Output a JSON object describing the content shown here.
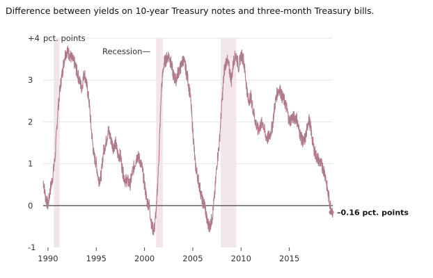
{
  "title": "Difference between yields on 10-year Treasury notes and three-month Treasury bills.",
  "colors": {
    "line": "#b07a8c",
    "recession": "#f3e6e9",
    "grid": "#e6e6e6",
    "zero": "#555555",
    "axis": "#444444"
  },
  "chart_data": {
    "type": "line",
    "title": "Difference between yields on 10-year Treasury notes and three-month Treasury bills.",
    "xlabel": "",
    "ylabel": "",
    "unit_label": "pct. points",
    "xlim": [
      1989.5,
      2019.5
    ],
    "ylim": [
      -1,
      4
    ],
    "x_ticks": [
      {
        "value": 1990,
        "label": "1990"
      },
      {
        "value": 1995,
        "label": "1995"
      },
      {
        "value": 2000,
        "label": "2000"
      },
      {
        "value": 2005,
        "label": "2005"
      },
      {
        "value": 2010,
        "label": "2010"
      },
      {
        "value": 2015,
        "label": "2015"
      }
    ],
    "y_ticks": [
      {
        "value": 4,
        "label": "+4"
      },
      {
        "value": 3,
        "label": "3"
      },
      {
        "value": 2,
        "label": "2"
      },
      {
        "value": 1,
        "label": "1"
      },
      {
        "value": 0,
        "label": "0"
      },
      {
        "value": -1,
        "label": "-1"
      }
    ],
    "recessions": [
      {
        "start": 1990.6,
        "end": 1991.2
      },
      {
        "start": 2001.2,
        "end": 2001.9
      },
      {
        "start": 2007.9,
        "end": 2009.5
      }
    ],
    "recession_label": "Recession—",
    "grid": true,
    "series": [
      {
        "x": [
          1989.5,
          1989.75,
          1990.0,
          1990.25,
          1990.5,
          1990.75,
          1991.0,
          1991.25,
          1991.5,
          1991.75,
          1992.0,
          1992.25,
          1992.5,
          1992.75,
          1993.0,
          1993.25,
          1993.5,
          1993.75,
          1994.0,
          1994.25,
          1994.5,
          1994.75,
          1995.0,
          1995.25,
          1995.5,
          1995.75,
          1996.0,
          1996.25,
          1996.5,
          1996.75,
          1997.0,
          1997.25,
          1997.5,
          1997.75,
          1998.0,
          1998.25,
          1998.5,
          1998.75,
          1999.0,
          1999.25,
          1999.5,
          1999.75,
          2000.0,
          2000.25,
          2000.5,
          2000.75,
          2001.0,
          2001.25,
          2001.5,
          2001.75,
          2002.0,
          2002.25,
          2002.5,
          2002.75,
          2003.0,
          2003.25,
          2003.5,
          2003.75,
          2004.0,
          2004.25,
          2004.5,
          2004.75,
          2005.0,
          2005.25,
          2005.5,
          2005.75,
          2006.0,
          2006.25,
          2006.5,
          2006.75,
          2007.0,
          2007.25,
          2007.5,
          2007.75,
          2008.0,
          2008.25,
          2008.5,
          2008.75,
          2009.0,
          2009.25,
          2009.5,
          2009.75,
          2010.0,
          2010.25,
          2010.5,
          2010.75,
          2011.0,
          2011.25,
          2011.5,
          2011.75,
          2012.0,
          2012.25,
          2012.5,
          2012.75,
          2013.0,
          2013.25,
          2013.5,
          2013.75,
          2014.0,
          2014.25,
          2014.5,
          2014.75,
          2015.0,
          2015.25,
          2015.5,
          2015.75,
          2016.0,
          2016.25,
          2016.5,
          2016.75,
          2017.0,
          2017.25,
          2017.5,
          2017.75,
          2018.0,
          2018.25,
          2018.5,
          2018.75,
          2019.0,
          2019.25,
          2019.5
        ],
        "y": [
          0.6,
          0.2,
          0.0,
          0.4,
          0.7,
          1.2,
          2.2,
          2.8,
          3.2,
          3.6,
          3.7,
          3.6,
          3.5,
          3.4,
          3.2,
          3.0,
          2.8,
          3.2,
          2.9,
          2.5,
          1.8,
          1.2,
          1.0,
          0.6,
          0.7,
          1.3,
          1.5,
          1.8,
          1.6,
          1.4,
          1.5,
          1.2,
          1.2,
          0.8,
          0.6,
          0.6,
          0.5,
          0.8,
          1.0,
          1.2,
          1.1,
          0.9,
          0.5,
          0.1,
          0.0,
          -0.5,
          -0.6,
          0.0,
          1.2,
          2.8,
          3.4,
          3.5,
          3.6,
          3.4,
          3.1,
          3.0,
          3.2,
          3.3,
          3.5,
          3.3,
          3.0,
          2.6,
          1.8,
          1.0,
          0.7,
          0.4,
          0.1,
          0.0,
          -0.4,
          -0.5,
          -0.3,
          0.2,
          1.0,
          1.5,
          2.4,
          3.2,
          3.5,
          3.3,
          3.0,
          3.5,
          3.6,
          3.3,
          3.6,
          3.5,
          3.0,
          2.5,
          2.6,
          2.3,
          2.0,
          1.8,
          1.9,
          2.0,
          1.7,
          1.6,
          1.7,
          1.9,
          2.4,
          2.7,
          2.8,
          2.6,
          2.5,
          2.3,
          2.0,
          2.1,
          2.1,
          2.1,
          1.8,
          1.6,
          1.5,
          1.7,
          2.1,
          1.8,
          1.4,
          1.2,
          1.1,
          1.0,
          0.9,
          0.7,
          0.3,
          0.0,
          -0.16
        ]
      }
    ],
    "end_point": {
      "x": 2019.5,
      "y": -0.16,
      "label": "–0.16 pct. points"
    }
  }
}
